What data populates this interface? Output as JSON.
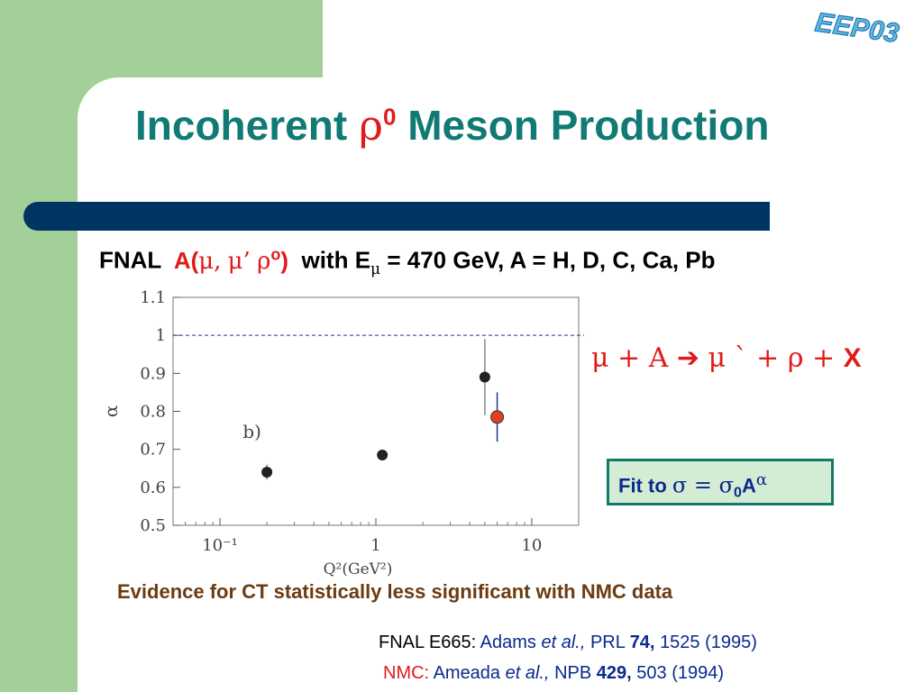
{
  "logo": {
    "text": "EEP03"
  },
  "title": {
    "prefix": "Incoherent",
    "symbol": "ρ",
    "superscript": "0",
    "suffix": "Meson Production"
  },
  "subtitle": {
    "lab": "FNAL",
    "process_open": "A(",
    "mu1": "μ,",
    "mu2": "μ’",
    "rho": "ρ",
    "rho_sup": "o",
    "process_close": ")",
    "with": "with E",
    "e_sub": "μ",
    "rest": "= 470 GeV,  A = H, D, C, Ca, Pb"
  },
  "reaction": {
    "text": "μ +  A ➔ μ `  +  ρ  + ",
    "x": "X"
  },
  "fit_box": {
    "label": "Fit to",
    "sigma": "σ = σ",
    "sub": "0",
    "a": "A",
    "exponent": "α"
  },
  "evidence": "Evidence for CT statistically less significant with NMC data",
  "references": [
    {
      "label": "FNAL E665:",
      "authors": "Adams",
      "etal": "et al.,",
      "journal": "PRL",
      "volume": "74,",
      "pages": "1525 (1995)"
    },
    {
      "label": "NMC:",
      "authors": "Ameada",
      "etal": "et al.,",
      "journal": "NPB",
      "volume": "429,",
      "pages": "503 (1994)"
    }
  ],
  "chart_data": {
    "type": "scatter",
    "xlabel": "Q²(GeV²)",
    "ylabel": "α",
    "annotation": "b)",
    "x_scale": "log",
    "xlim": [
      0.05,
      20
    ],
    "ylim": [
      0.5,
      1.1
    ],
    "x_ticks": [
      "10⁻¹",
      "1",
      "10"
    ],
    "y_ticks": [
      "0.5",
      "0.6",
      "0.7",
      "0.8",
      "0.9",
      "1",
      "1.1"
    ],
    "reference_line": 1.0,
    "series": [
      {
        "points": [
          {
            "x": 0.2,
            "y": 0.64,
            "err": 0.02
          },
          {
            "x": 1.1,
            "y": 0.685,
            "err": 0.01
          },
          {
            "x": 5.0,
            "y": 0.89,
            "err": 0.1
          }
        ],
        "color": "#222222"
      },
      {
        "points": [
          {
            "x": 6.0,
            "y": 0.785,
            "err": 0.065
          }
        ],
        "color": "#e0401b"
      }
    ]
  }
}
